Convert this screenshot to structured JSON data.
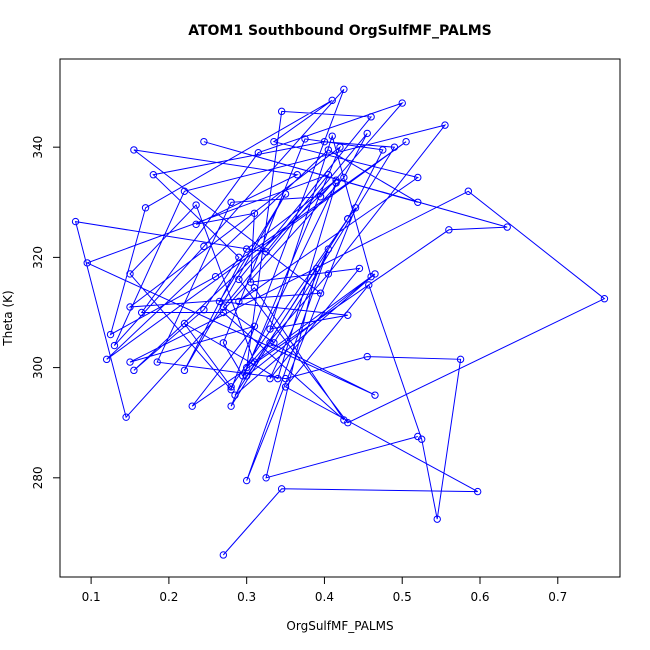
{
  "chart_data": {
    "type": "line",
    "title": "ATOM1 Southbound OrgSulfMF_PALMS",
    "xlabel": "OrgSulfMF_PALMS",
    "ylabel": "Theta (K)",
    "xlim": [
      0.06,
      0.78
    ],
    "ylim": [
      262,
      356
    ],
    "xticks": [
      0.1,
      0.2,
      0.3,
      0.4,
      0.5,
      0.6,
      0.7
    ],
    "yticks": [
      280,
      300,
      320,
      340
    ],
    "grid": false,
    "marker": "open-circle",
    "series_color": "#0000ff",
    "series": [
      {
        "x": [
          0.27,
          0.345,
          0.597,
          0.35,
          0.457,
          0.525,
          0.545,
          0.575,
          0.455,
          0.35,
          0.185,
          0.28,
          0.395,
          0.5,
          0.315,
          0.165,
          0.27,
          0.425,
          0.31,
          0.29,
          0.52,
          0.335,
          0.41,
          0.17,
          0.125,
          0.26,
          0.505,
          0.12,
          0.405,
          0.52,
          0.245,
          0.635,
          0.56,
          0.23,
          0.31,
          0.15,
          0.585,
          0.76,
          0.43,
          0.29,
          0.46,
          0.345,
          0.3,
          0.405,
          0.555,
          0.22,
          0.13,
          0.245,
          0.425,
          0.28,
          0.15,
          0.235,
          0.31,
          0.46,
          0.41,
          0.33,
          0.43,
          0.265,
          0.35,
          0.22,
          0.3,
          0.415,
          0.155,
          0.245,
          0.29,
          0.18,
          0.4,
          0.49,
          0.335,
          0.27,
          0.455,
          0.425,
          0.145,
          0.08,
          0.325,
          0.405,
          0.095,
          0.465,
          0.33,
          0.28,
          0.42,
          0.15,
          0.395,
          0.155,
          0.365,
          0.235,
          0.31,
          0.305,
          0.445,
          0.33,
          0.405,
          0.3,
          0.44,
          0.43,
          0.475,
          0.375,
          0.27,
          0.295,
          0.415,
          0.34,
          0.22,
          0.28,
          0.43,
          0.285,
          0.465,
          0.3,
          0.39,
          0.325,
          0.52
        ],
        "y": [
          266,
          278,
          277.5,
          296.5,
          315,
          287,
          272.5,
          301.5,
          302,
          298,
          301,
          330,
          331,
          348,
          339,
          310,
          310,
          290.5,
          314.5,
          312,
          334.5,
          341,
          348.5,
          329,
          306,
          316.5,
          341,
          301.5,
          339.5,
          330,
          341,
          325.5,
          325,
          293,
          307.5,
          301,
          332,
          312.5,
          290,
          316,
          345.5,
          346.5,
          300,
          317,
          344,
          332,
          304,
          322,
          350.5,
          296,
          317,
          329.5,
          301,
          316.5,
          342,
          307,
          309.5,
          312,
          331.5,
          299.5,
          321.5,
          334,
          299.5,
          310.5,
          320,
          335,
          341,
          340,
          304.5,
          311,
          342.5,
          334.5,
          291,
          326.5,
          321,
          335,
          319,
          295,
          304.5,
          293,
          340,
          311,
          313.5,
          339.5,
          335,
          326,
          328,
          315.5,
          318,
          298,
          321.5,
          279.5,
          329,
          327,
          339.5,
          341.5,
          304.5,
          298.5,
          333.5,
          298,
          308,
          296.5,
          327,
          295,
          317,
          298.5,
          318,
          280,
          287.5
        ]
      }
    ]
  }
}
